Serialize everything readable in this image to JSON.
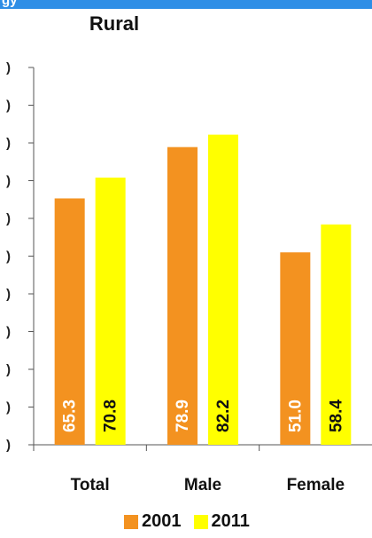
{
  "header": {
    "fragment_text": "gy"
  },
  "chart_data": {
    "type": "bar",
    "title": "Rural",
    "categories": [
      "Total",
      "Male",
      "Female"
    ],
    "series": [
      {
        "name": "2001",
        "color": "#f39220",
        "values": [
          65.3,
          78.9,
          51.0
        ],
        "labels": [
          "65.3",
          "78.9",
          "51.0"
        ]
      },
      {
        "name": "2011",
        "color": "#ffff00",
        "values": [
          70.8,
          82.2,
          58.4
        ],
        "labels": [
          "70.8",
          "82.2",
          "58.4"
        ]
      }
    ],
    "ylim": [
      0,
      100
    ],
    "ytick_count": 10,
    "ytick_label_glyph": ")",
    "legend_position": "bottom",
    "grid": false,
    "xlabel": "",
    "ylabel": ""
  }
}
